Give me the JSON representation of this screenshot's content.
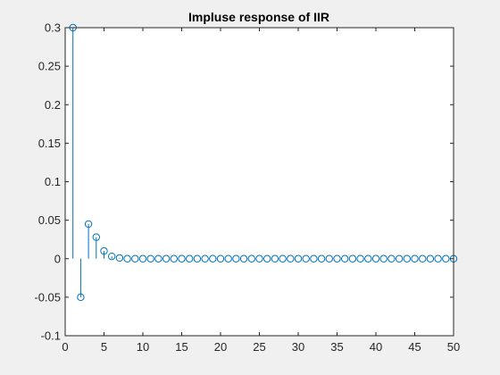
{
  "chart_data": {
    "type": "stem",
    "title": "Impluse response of IIR",
    "xlabel": "",
    "ylabel": "",
    "xlim": [
      0,
      50
    ],
    "ylim": [
      -0.1,
      0.3
    ],
    "xticks": [
      0,
      5,
      10,
      15,
      20,
      25,
      30,
      35,
      40,
      45,
      50
    ],
    "xtick_labels": [
      "0",
      "5",
      "10",
      "15",
      "20",
      "25",
      "30",
      "35",
      "40",
      "45",
      "50"
    ],
    "yticks": [
      -0.1,
      -0.05,
      0,
      0.05,
      0.1,
      0.15,
      0.2,
      0.25,
      0.3
    ],
    "ytick_labels": [
      "-0.1",
      "-0.05",
      "0",
      "0.05",
      "0.1",
      "0.15",
      "0.2",
      "0.25",
      "0.3"
    ],
    "grid": false,
    "series": [
      {
        "color": "#0072bd",
        "x": [
          1,
          2,
          3,
          4,
          5,
          6,
          7,
          8,
          9,
          10,
          11,
          12,
          13,
          14,
          15,
          16,
          17,
          18,
          19,
          20,
          21,
          22,
          23,
          24,
          25,
          26,
          27,
          28,
          29,
          30,
          31,
          32,
          33,
          34,
          35,
          36,
          37,
          38,
          39,
          40,
          41,
          42,
          43,
          44,
          45,
          46,
          47,
          48,
          49,
          50
        ],
        "values": [
          0.3,
          -0.05,
          0.045,
          0.028,
          0.01,
          0.003,
          0.001,
          0,
          0,
          0,
          0,
          0,
          0,
          0,
          0,
          0,
          0,
          0,
          0,
          0,
          0,
          0,
          0,
          0,
          0,
          0,
          0,
          0,
          0,
          0,
          0,
          0,
          0,
          0,
          0,
          0,
          0,
          0,
          0,
          0,
          0,
          0,
          0,
          0,
          0,
          0,
          0,
          0,
          0,
          0
        ]
      }
    ]
  }
}
